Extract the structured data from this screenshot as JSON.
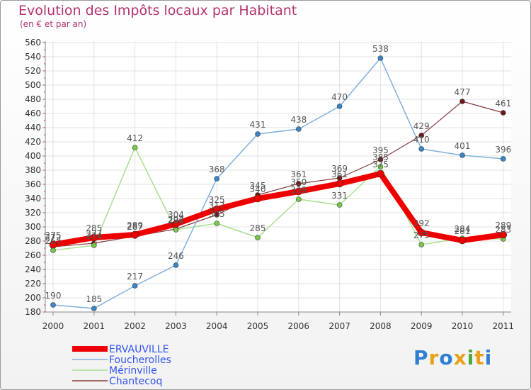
{
  "header": {
    "title": "Evolution des Impôts locaux par Habitant",
    "subtitle": "(en € et par an)"
  },
  "logo": {
    "text": "Proxiti",
    "letters": [
      "P",
      "r",
      "o",
      "x",
      "i",
      "t",
      "i"
    ],
    "colors": [
      "#2f7fd3",
      "#e8a21a",
      "#2f7fd3",
      "#e8a21a",
      "#4aaa3c",
      "#e8a21a",
      "#2f7fd3"
    ]
  },
  "chart_data": {
    "type": "line",
    "title": "Evolution des Impôts locaux par Habitant",
    "subtitle": "(en € et par an)",
    "xlabel": "",
    "ylabel": "",
    "categories": [
      "2000",
      "2001",
      "2002",
      "2003",
      "2004",
      "2005",
      "2006",
      "2007",
      "2008",
      "2009",
      "2010",
      "2011"
    ],
    "ylim": [
      180,
      560
    ],
    "yticks": [
      180,
      200,
      220,
      240,
      260,
      280,
      300,
      320,
      340,
      360,
      380,
      400,
      420,
      440,
      460,
      480,
      500,
      520,
      540,
      560
    ],
    "grid": true,
    "legend_position": "bottom-left",
    "series": [
      {
        "name": "ERVAUVILLE",
        "color": "#ee0000",
        "text_color": "#3355ee",
        "width": 8,
        "marker": "#ee0000",
        "marker_r": 5,
        "values": [
          275,
          285,
          289,
          304,
          325,
          340,
          350,
          361,
          375,
          292,
          281,
          289
        ]
      },
      {
        "name": "Foucherolles",
        "color": "#7fb0de",
        "text_color": "#3355ee",
        "width": 1.5,
        "marker": "#3a86c8",
        "marker_r": 3.5,
        "values": [
          190,
          185,
          217,
          246,
          368,
          431,
          438,
          470,
          538,
          410,
          401,
          396
        ]
      },
      {
        "name": "Mérinville",
        "color": "#a8e090",
        "text_color": "#3355ee",
        "width": 1.5,
        "marker": "#78c84a",
        "marker_r": 3.5,
        "values": [
          267,
          274,
          412,
          296,
          305,
          285,
          339,
          331,
          385,
          275,
          284,
          283
        ]
      },
      {
        "name": "Chantecoq",
        "color": "#8a3a3a",
        "text_color": "#3355ee",
        "width": 1.2,
        "marker": "#6a1a1a",
        "marker_r": 3.5,
        "values": [
          272,
          277,
          287,
          297,
          317,
          345,
          361,
          369,
          395,
          429,
          477,
          461
        ]
      }
    ]
  }
}
